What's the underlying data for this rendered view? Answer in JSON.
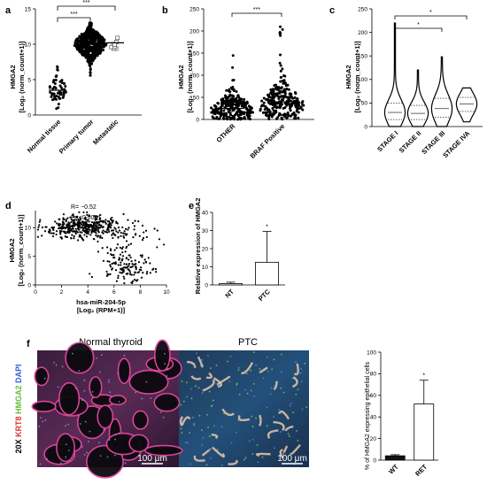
{
  "panels": {
    "a": {
      "label": "a"
    },
    "b": {
      "label": "b"
    },
    "c": {
      "label": "c"
    },
    "d": {
      "label": "d"
    },
    "e": {
      "label": "e"
    },
    "f": {
      "label": "f"
    }
  },
  "yaxis_hmga2_line1": "HMGA2",
  "yaxis_hmga2_line2": "[Log₂ (norm_count+1)]",
  "micrograph": {
    "left_title": "Normal thyroid",
    "right_title": "PTC",
    "magnification": "20X",
    "scale_bar_left": "100 μm",
    "scale_bar_right": "100 μm",
    "stain_labels": [
      {
        "text": "KRT8",
        "color": "#d9342b"
      },
      {
        "text": "HMGA2",
        "color": "#5fbf3a"
      },
      {
        "text": "DAPI",
        "color": "#2f5fcf"
      }
    ]
  },
  "chart_data": [
    {
      "id": "a",
      "type": "scatter",
      "categories": [
        "Normal tissue",
        "Primary tumor",
        "Metastatic"
      ],
      "ylabel": "HMGA2 [Log₂ (norm_count+1)]",
      "ylim": [
        0,
        15
      ],
      "yticks": [
        0,
        5,
        10,
        15
      ],
      "groups": [
        {
          "name": "Normal tissue",
          "n": 58,
          "mean": 3.5,
          "sd": 1.3,
          "min": 0.6,
          "max": 8.5,
          "marker": "circle"
        },
        {
          "name": "Primary tumor",
          "n": 500,
          "mean": 10.0,
          "sd": 1.3,
          "min": 0.5,
          "max": 13.0,
          "marker": "circle"
        },
        {
          "name": "Metastatic",
          "n": 8,
          "mean": 10.2,
          "sd": 0.6,
          "min": 9.0,
          "max": 11.0,
          "marker": "open-square"
        }
      ],
      "significance": [
        {
          "from": "Normal tissue",
          "to": "Primary tumor",
          "text": "***",
          "y": 14.0
        },
        {
          "from": "Normal tissue",
          "to": "Metastatic",
          "text": "***",
          "y": 16.0
        }
      ]
    },
    {
      "id": "b",
      "type": "scatter",
      "categories": [
        "OTHER",
        "BRAF Positive"
      ],
      "ylabel": "HMGA2 [Log₂ (norm_count+1)]",
      "ylim": [
        0,
        250
      ],
      "yticks": [
        0,
        50,
        100,
        150,
        200,
        250
      ],
      "groups": [
        {
          "name": "OTHER",
          "n": 260,
          "mean": 25,
          "sd": 24,
          "min": 0,
          "max": 145
        },
        {
          "name": "BRAF Positive",
          "n": 260,
          "mean": 40,
          "sd": 30,
          "min": 0,
          "max": 220
        }
      ],
      "significance": [
        {
          "from": "OTHER",
          "to": "BRAF Positive",
          "text": "***",
          "y": 240
        }
      ]
    },
    {
      "id": "c",
      "type": "violin",
      "categories": [
        "STAGE I",
        "STAGE II",
        "STAGE III",
        "STAGE IVA"
      ],
      "ylabel": "HMGA2 [Log₂ (norm_count+1)]",
      "ylim": [
        0,
        250
      ],
      "yticks": [
        0,
        50,
        100,
        150,
        200,
        250
      ],
      "groups": [
        {
          "name": "STAGE I",
          "min": 0,
          "max": 220,
          "q1": 15,
          "median": 30,
          "q3": 50
        },
        {
          "name": "STAGE II",
          "min": 0,
          "max": 120,
          "q1": 15,
          "median": 28,
          "q3": 45
        },
        {
          "name": "STAGE III",
          "min": 0,
          "max": 148,
          "q1": 20,
          "median": 38,
          "q3": 60
        },
        {
          "name": "STAGE IVA",
          "min": 10,
          "max": 82,
          "q1": 32,
          "median": 48,
          "q3": 62
        }
      ],
      "significance": [
        {
          "from": "STAGE I",
          "to": "STAGE III",
          "text": "*",
          "y": 222
        },
        {
          "from": "STAGE I",
          "to": "STAGE IVA",
          "text": "*",
          "y": 252
        }
      ]
    },
    {
      "id": "d",
      "type": "scatter",
      "xlabel": "hsa-miR-204-5p [Log₂ (RPM+1)]",
      "ylabel": "HMGA2 [Log₂ (norm_count+1)]",
      "xlim": [
        0,
        10
      ],
      "ylim": [
        0,
        13
      ],
      "xticks": [
        0,
        2,
        4,
        6,
        8,
        10
      ],
      "yticks": [
        0,
        5,
        10
      ],
      "stats": {
        "r": "R= −0.52",
        "p": "P=<0.0001"
      },
      "clusters": [
        {
          "n": 380,
          "x_mean": 3.6,
          "x_sd": 1.5,
          "y_mean": 10.2,
          "y_sd": 0.9
        },
        {
          "n": 130,
          "x_mean": 6.8,
          "x_sd": 0.9,
          "y_mean": 3.3,
          "y_sd": 1.4
        },
        {
          "n": 70,
          "x_mean": 6.5,
          "x_sd": 1.8,
          "y_mean": 8.6,
          "y_sd": 1.6
        }
      ]
    },
    {
      "id": "e",
      "type": "bar",
      "categories": [
        "NT",
        "PTC"
      ],
      "values": [
        0.7,
        12.5
      ],
      "errors": [
        0.8,
        17.0
      ],
      "ylabel": "Relative expression of HMGA2",
      "ylim": [
        0,
        40
      ],
      "yticks": [
        0,
        10,
        20,
        30,
        40
      ],
      "significance": [
        {
          "over": "PTC",
          "text": "*"
        }
      ]
    },
    {
      "id": "f",
      "type": "bar",
      "categories": [
        "WT",
        "RET"
      ],
      "values": [
        4,
        52
      ],
      "errors": [
        1,
        22
      ],
      "ylabel": "% of HMGA2 expressing epithelial cells",
      "ylim": [
        0,
        100
      ],
      "yticks": [
        0,
        20,
        40,
        60,
        80,
        100
      ],
      "significance": [
        {
          "over": "RET",
          "text": "*"
        }
      ]
    }
  ]
}
